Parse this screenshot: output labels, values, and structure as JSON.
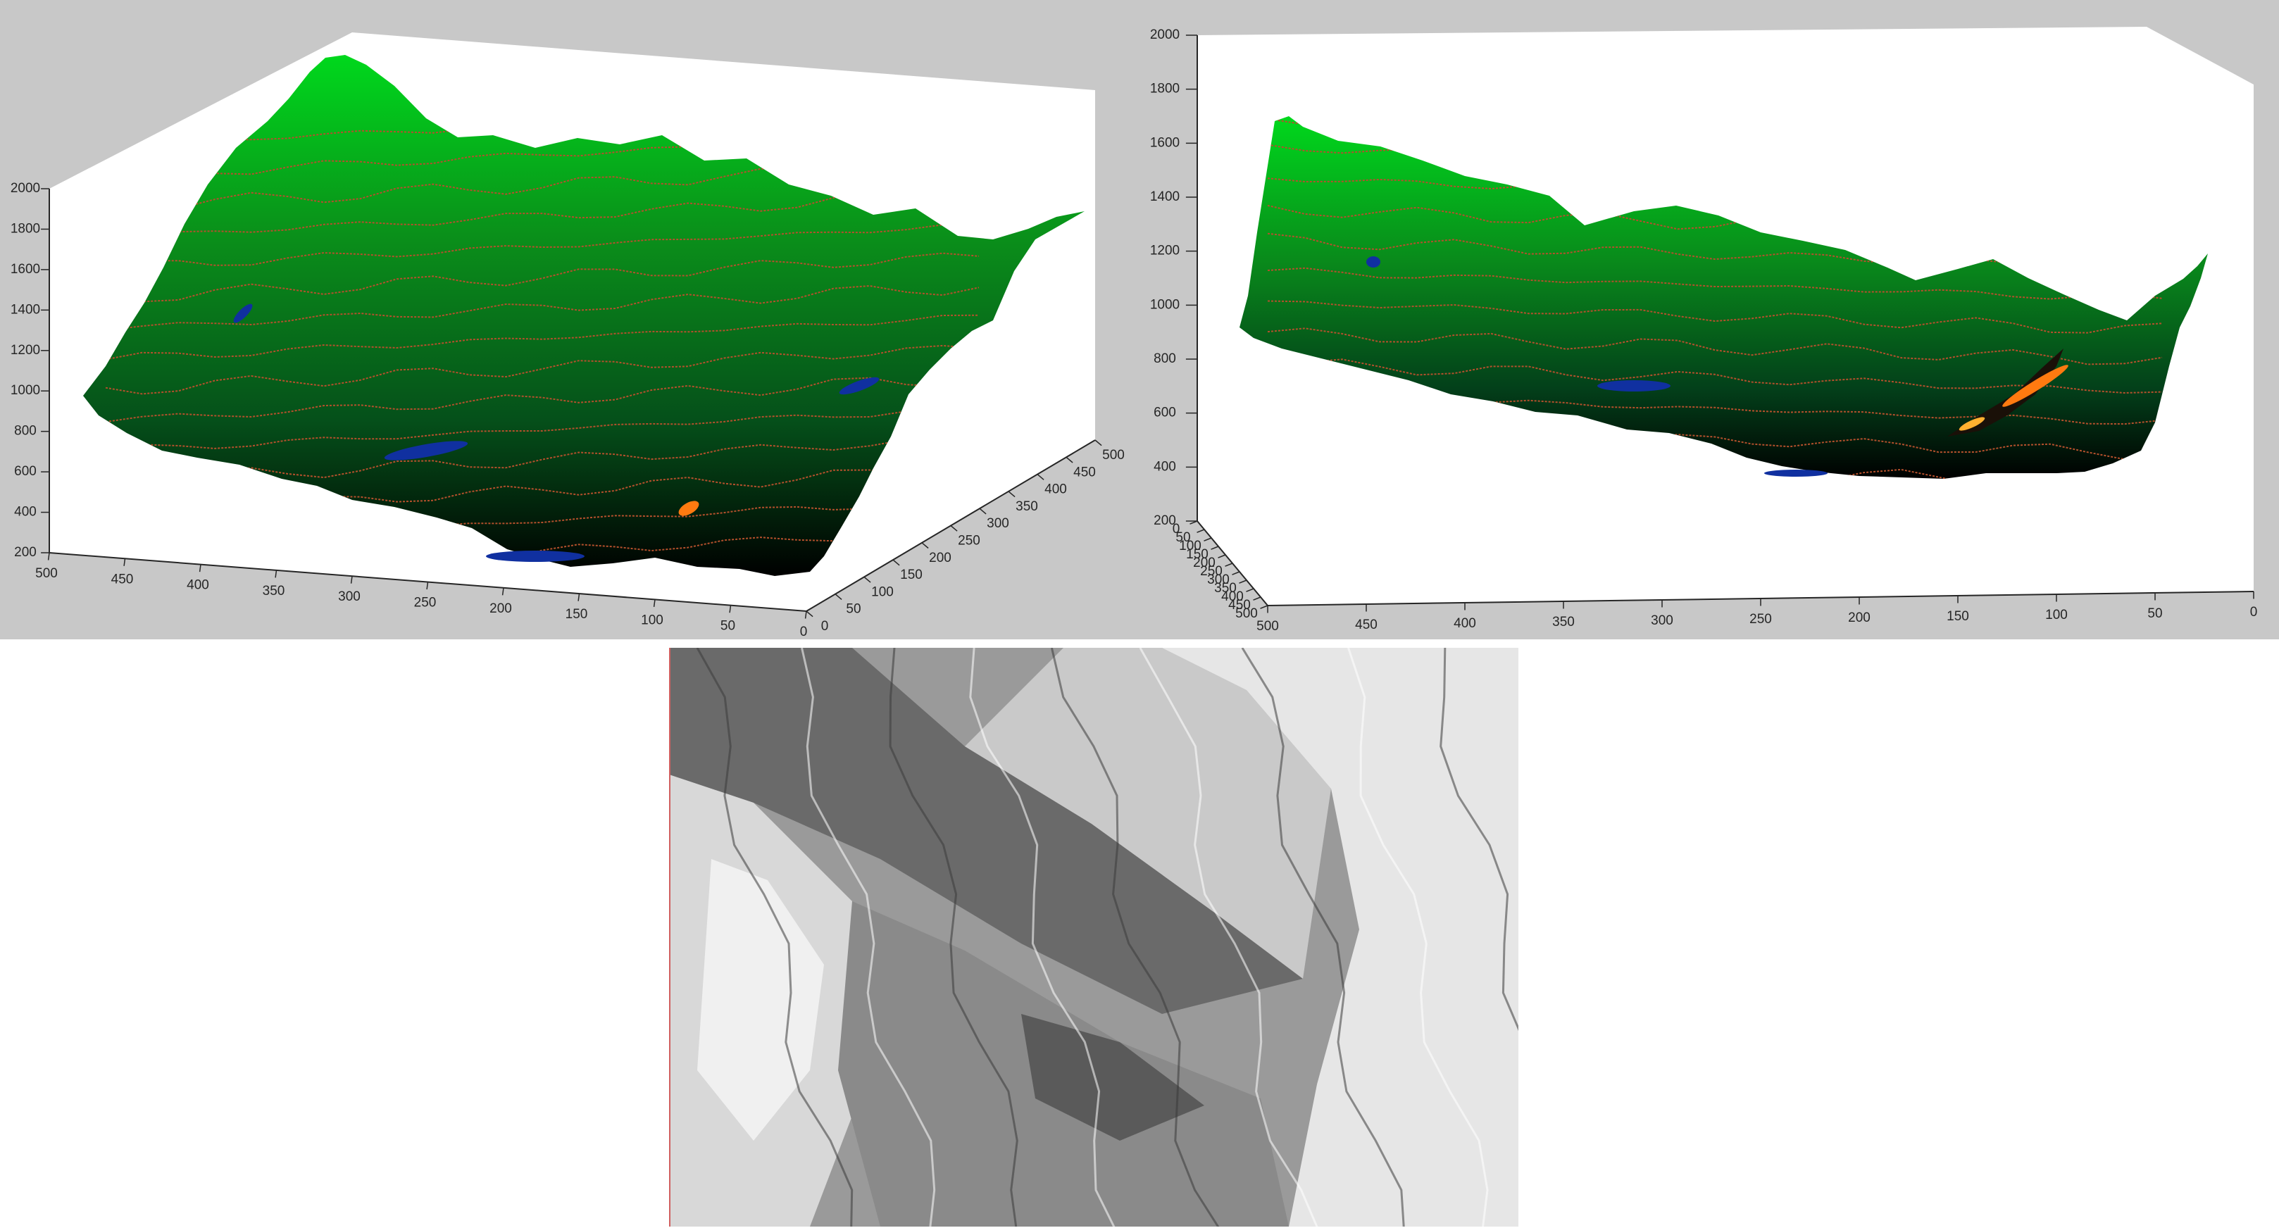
{
  "colors": {
    "figure_background": "#c8c8c8",
    "axes_background": "#ffffff",
    "surface_peak": "#00d21a",
    "surface_valley": "#000000",
    "contour_line": "#b4502c",
    "water_points": "#1030a0",
    "hot_spot": "#ff7a10",
    "hillshade_base": "#7a7a7a"
  },
  "chart_data": [
    {
      "type": "surface3d",
      "view": "left",
      "z_ticks": [
        "2000",
        "1800",
        "1600",
        "1400",
        "1200",
        "1000",
        "800",
        "600",
        "400",
        "200"
      ],
      "x_ticks": [
        "500",
        "450",
        "400",
        "350",
        "300",
        "250",
        "200",
        "150",
        "100",
        "50",
        "0"
      ],
      "y_ticks": [
        "0",
        "50",
        "100",
        "150",
        "200",
        "250",
        "300",
        "350",
        "400",
        "450",
        "500"
      ],
      "zlim": [
        200,
        2000
      ],
      "xlim": [
        0,
        500
      ],
      "ylim": [
        0,
        500
      ],
      "grid": false,
      "contour_levels": [
        400,
        500,
        600,
        700,
        800,
        900,
        1000,
        1100,
        1200,
        1300,
        1400,
        1500,
        1600,
        1700,
        1800
      ]
    },
    {
      "type": "surface3d",
      "view": "right",
      "z_ticks": [
        "2000",
        "1800",
        "1600",
        "1400",
        "1200",
        "1000",
        "800",
        "600",
        "400",
        "200"
      ],
      "x_ticks": [
        "500",
        "450",
        "400",
        "350",
        "300",
        "250",
        "200",
        "150",
        "100",
        "50",
        "0"
      ],
      "y_ticks": [
        "0",
        "50",
        "100",
        "150",
        "200",
        "250",
        "300",
        "350",
        "400",
        "450",
        "500"
      ],
      "zlim": [
        200,
        2000
      ],
      "xlim": [
        0,
        500
      ],
      "ylim": [
        0,
        500
      ],
      "grid": false,
      "contour_levels": [
        400,
        500,
        600,
        700,
        800,
        900,
        1000,
        1100,
        1200,
        1300,
        1400,
        1500,
        1600
      ]
    },
    {
      "type": "heatmap",
      "view": "hillshade",
      "colormap": "gray",
      "ridge_count": 9
    }
  ]
}
